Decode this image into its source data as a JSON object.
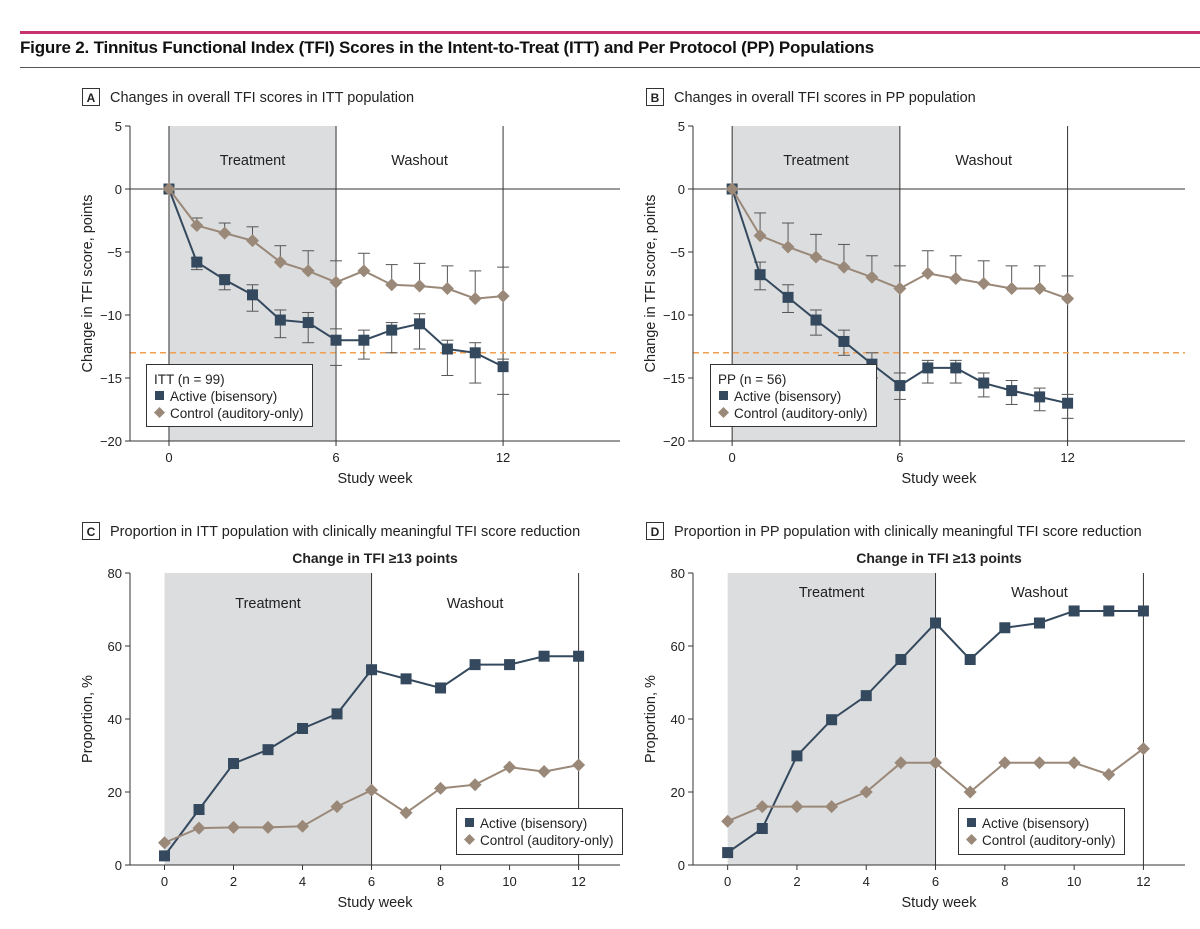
{
  "figure_title": "Figure 2. Tinnitus Functional Index (TFI) Scores in the Intent-to-Treat (ITT) and Per Protocol (PP) Populations",
  "colors": {
    "active": "#34495e",
    "control": "#9a8878",
    "shade": "#dcdddf",
    "threshold": "#f0a050",
    "brand_bar": "#c8326e"
  },
  "chart_data": [
    {
      "panel": "A",
      "type": "line",
      "title": "Changes in overall TFI scores in ITT population",
      "xlabel": "Study week",
      "ylabel": "Change in TFI score, points",
      "xlim": [
        -1.4,
        16.2
      ],
      "ylim": [
        -20,
        5
      ],
      "xticks": [
        0,
        6,
        12
      ],
      "yticks": [
        5,
        0,
        -5,
        -10,
        -15,
        -20
      ],
      "regions": [
        {
          "label": "Treatment",
          "x": [
            0,
            6
          ],
          "shaded": true
        },
        {
          "label": "Washout",
          "x": [
            6,
            12
          ],
          "shaded": false
        }
      ],
      "threshold": -13,
      "legend": {
        "title": "ITT (n = 99)",
        "position": "bottom-left"
      },
      "series": [
        {
          "name": "Active (bisensory)",
          "marker": "square",
          "x": [
            0,
            1,
            2,
            3,
            4,
            5,
            6,
            7,
            8,
            9,
            10,
            11,
            12
          ],
          "y": [
            0,
            -5.8,
            -7.2,
            -8.4,
            -10.4,
            -10.6,
            -12.0,
            -12.0,
            -11.2,
            -10.7,
            -12.7,
            -13.0,
            -14.1
          ],
          "error_upper": [
            null,
            -5.5,
            -6.8,
            -7.6,
            -9.6,
            -9.8,
            -11.1,
            -11.2,
            -10.6,
            -9.9,
            -12.0,
            -12.2,
            -13.5
          ],
          "error_lower": [
            null,
            -6.4,
            -8.0,
            -9.7,
            -11.8,
            -12.2,
            -14.0,
            -13.5,
            -13.0,
            -12.7,
            -14.8,
            -15.4,
            -16.3
          ]
        },
        {
          "name": "Control (auditory-only)",
          "marker": "diamond",
          "x": [
            0,
            1,
            2,
            3,
            4,
            5,
            6,
            7,
            8,
            9,
            10,
            11,
            12
          ],
          "y": [
            0,
            -2.9,
            -3.5,
            -4.1,
            -5.8,
            -6.5,
            -7.4,
            -6.5,
            -7.6,
            -7.7,
            -7.9,
            -8.7,
            -8.5
          ],
          "error_upper": [
            null,
            -2.3,
            -2.7,
            -3.0,
            -4.5,
            -4.9,
            -5.7,
            -5.1,
            -6.0,
            -5.9,
            -6.1,
            -6.5,
            -6.2
          ]
        }
      ]
    },
    {
      "panel": "B",
      "type": "line",
      "title": "Changes in overall TFI scores in PP population",
      "xlabel": "Study week",
      "ylabel": "Change in TFI score, points",
      "xlim": [
        -1.4,
        16.2
      ],
      "ylim": [
        -20,
        5
      ],
      "xticks": [
        0,
        6,
        12
      ],
      "yticks": [
        5,
        0,
        -5,
        -10,
        -15,
        -20
      ],
      "regions": [
        {
          "label": "Treatment",
          "x": [
            0,
            6
          ],
          "shaded": true
        },
        {
          "label": "Washout",
          "x": [
            6,
            12
          ],
          "shaded": false
        }
      ],
      "threshold": -13,
      "legend": {
        "title": "PP (n = 56)",
        "position": "bottom-left"
      },
      "series": [
        {
          "name": "Active (bisensory)",
          "marker": "square",
          "x": [
            0,
            1,
            2,
            3,
            4,
            5,
            6,
            7,
            8,
            9,
            10,
            11,
            12
          ],
          "y": [
            0,
            -6.8,
            -8.6,
            -10.4,
            -12.1,
            -13.9,
            -15.6,
            -14.2,
            -14.2,
            -15.4,
            -16.0,
            -16.5,
            -17.0
          ],
          "error_upper": [
            null,
            -5.8,
            -7.6,
            -9.6,
            -11.2,
            -13.0,
            -14.6,
            -13.6,
            -13.6,
            -14.6,
            -15.2,
            -15.8,
            -16.3
          ],
          "error_lower": [
            null,
            -8.0,
            -9.8,
            -11.6,
            -13.2,
            -15.0,
            -16.7,
            -15.4,
            -15.4,
            -16.5,
            -17.1,
            -17.6,
            -18.2
          ]
        },
        {
          "name": "Control (auditory-only)",
          "marker": "diamond",
          "x": [
            0,
            1,
            2,
            3,
            4,
            5,
            6,
            7,
            8,
            9,
            10,
            11,
            12
          ],
          "y": [
            0,
            -3.7,
            -4.6,
            -5.4,
            -6.2,
            -7.0,
            -7.9,
            -6.7,
            -7.1,
            -7.5,
            -7.9,
            -7.9,
            -8.7
          ],
          "error_upper": [
            null,
            -1.9,
            -2.7,
            -3.6,
            -4.4,
            -5.3,
            -6.1,
            -4.9,
            -5.3,
            -5.7,
            -6.1,
            -6.1,
            -6.9
          ]
        }
      ]
    },
    {
      "panel": "C",
      "type": "line",
      "title": "Proportion in ITT population with clinically meaningful TFI score reduction",
      "subtitle": "Change in TFI ≥13 points",
      "xlabel": "Study week",
      "ylabel": "Proportion, %",
      "xlim": [
        -1,
        13.2
      ],
      "ylim": [
        0,
        80
      ],
      "xticks": [
        0,
        2,
        4,
        6,
        8,
        10,
        12
      ],
      "yticks": [
        0,
        20,
        40,
        60,
        80
      ],
      "regions": [
        {
          "label": "Treatment",
          "x": [
            0,
            6
          ],
          "shaded": true
        },
        {
          "label": "Washout",
          "x": [
            6,
            12
          ],
          "shaded": false
        }
      ],
      "legend": {
        "position": "bottom-right"
      },
      "series": [
        {
          "name": "Active (bisensory)",
          "marker": "square",
          "x": [
            0,
            1,
            2,
            3,
            4,
            5,
            6,
            7,
            8,
            9,
            10,
            11,
            12
          ],
          "y": [
            2.5,
            15.2,
            27.8,
            31.6,
            37.4,
            41.4,
            53.5,
            51.0,
            48.5,
            54.9,
            54.9,
            57.2,
            57.2
          ]
        },
        {
          "name": "Control (auditory-only)",
          "marker": "diamond",
          "x": [
            0,
            1,
            2,
            3,
            4,
            5,
            6,
            7,
            8,
            9,
            10,
            11,
            12
          ],
          "y": [
            6.1,
            10.1,
            10.3,
            10.3,
            10.6,
            16.0,
            20.5,
            14.3,
            21.0,
            22.0,
            26.8,
            25.6,
            27.4
          ]
        }
      ]
    },
    {
      "panel": "D",
      "type": "line",
      "title": "Proportion in PP population with clinically meaningful TFI score reduction",
      "subtitle": "Change in TFI ≥13 points",
      "xlabel": "Study week",
      "ylabel": "Proportion, %",
      "xlim": [
        -1,
        13.2
      ],
      "ylim": [
        0,
        80
      ],
      "xticks": [
        0,
        2,
        4,
        6,
        8,
        10,
        12
      ],
      "yticks": [
        0,
        20,
        40,
        60,
        80
      ],
      "regions": [
        {
          "label": "Treatment",
          "x": [
            0,
            6
          ],
          "shaded": true
        },
        {
          "label": "Washout",
          "x": [
            6,
            12
          ],
          "shaded": false
        }
      ],
      "legend": {
        "position": "bottom-right"
      },
      "series": [
        {
          "name": "Active (bisensory)",
          "marker": "square",
          "x": [
            0,
            1,
            2,
            3,
            4,
            5,
            6,
            7,
            8,
            9,
            10,
            11,
            12
          ],
          "y": [
            3.4,
            10.0,
            29.9,
            39.8,
            46.4,
            56.3,
            66.3,
            56.3,
            65.0,
            66.3,
            69.6,
            69.6,
            69.6
          ]
        },
        {
          "name": "Control (auditory-only)",
          "marker": "diamond",
          "x": [
            0,
            1,
            2,
            3,
            4,
            5,
            6,
            7,
            8,
            9,
            10,
            11,
            12
          ],
          "y": [
            12.0,
            16.0,
            16.0,
            16.0,
            20.0,
            28.0,
            28.0,
            20.0,
            28.0,
            28.0,
            28.0,
            24.8,
            31.9
          ]
        }
      ]
    }
  ]
}
